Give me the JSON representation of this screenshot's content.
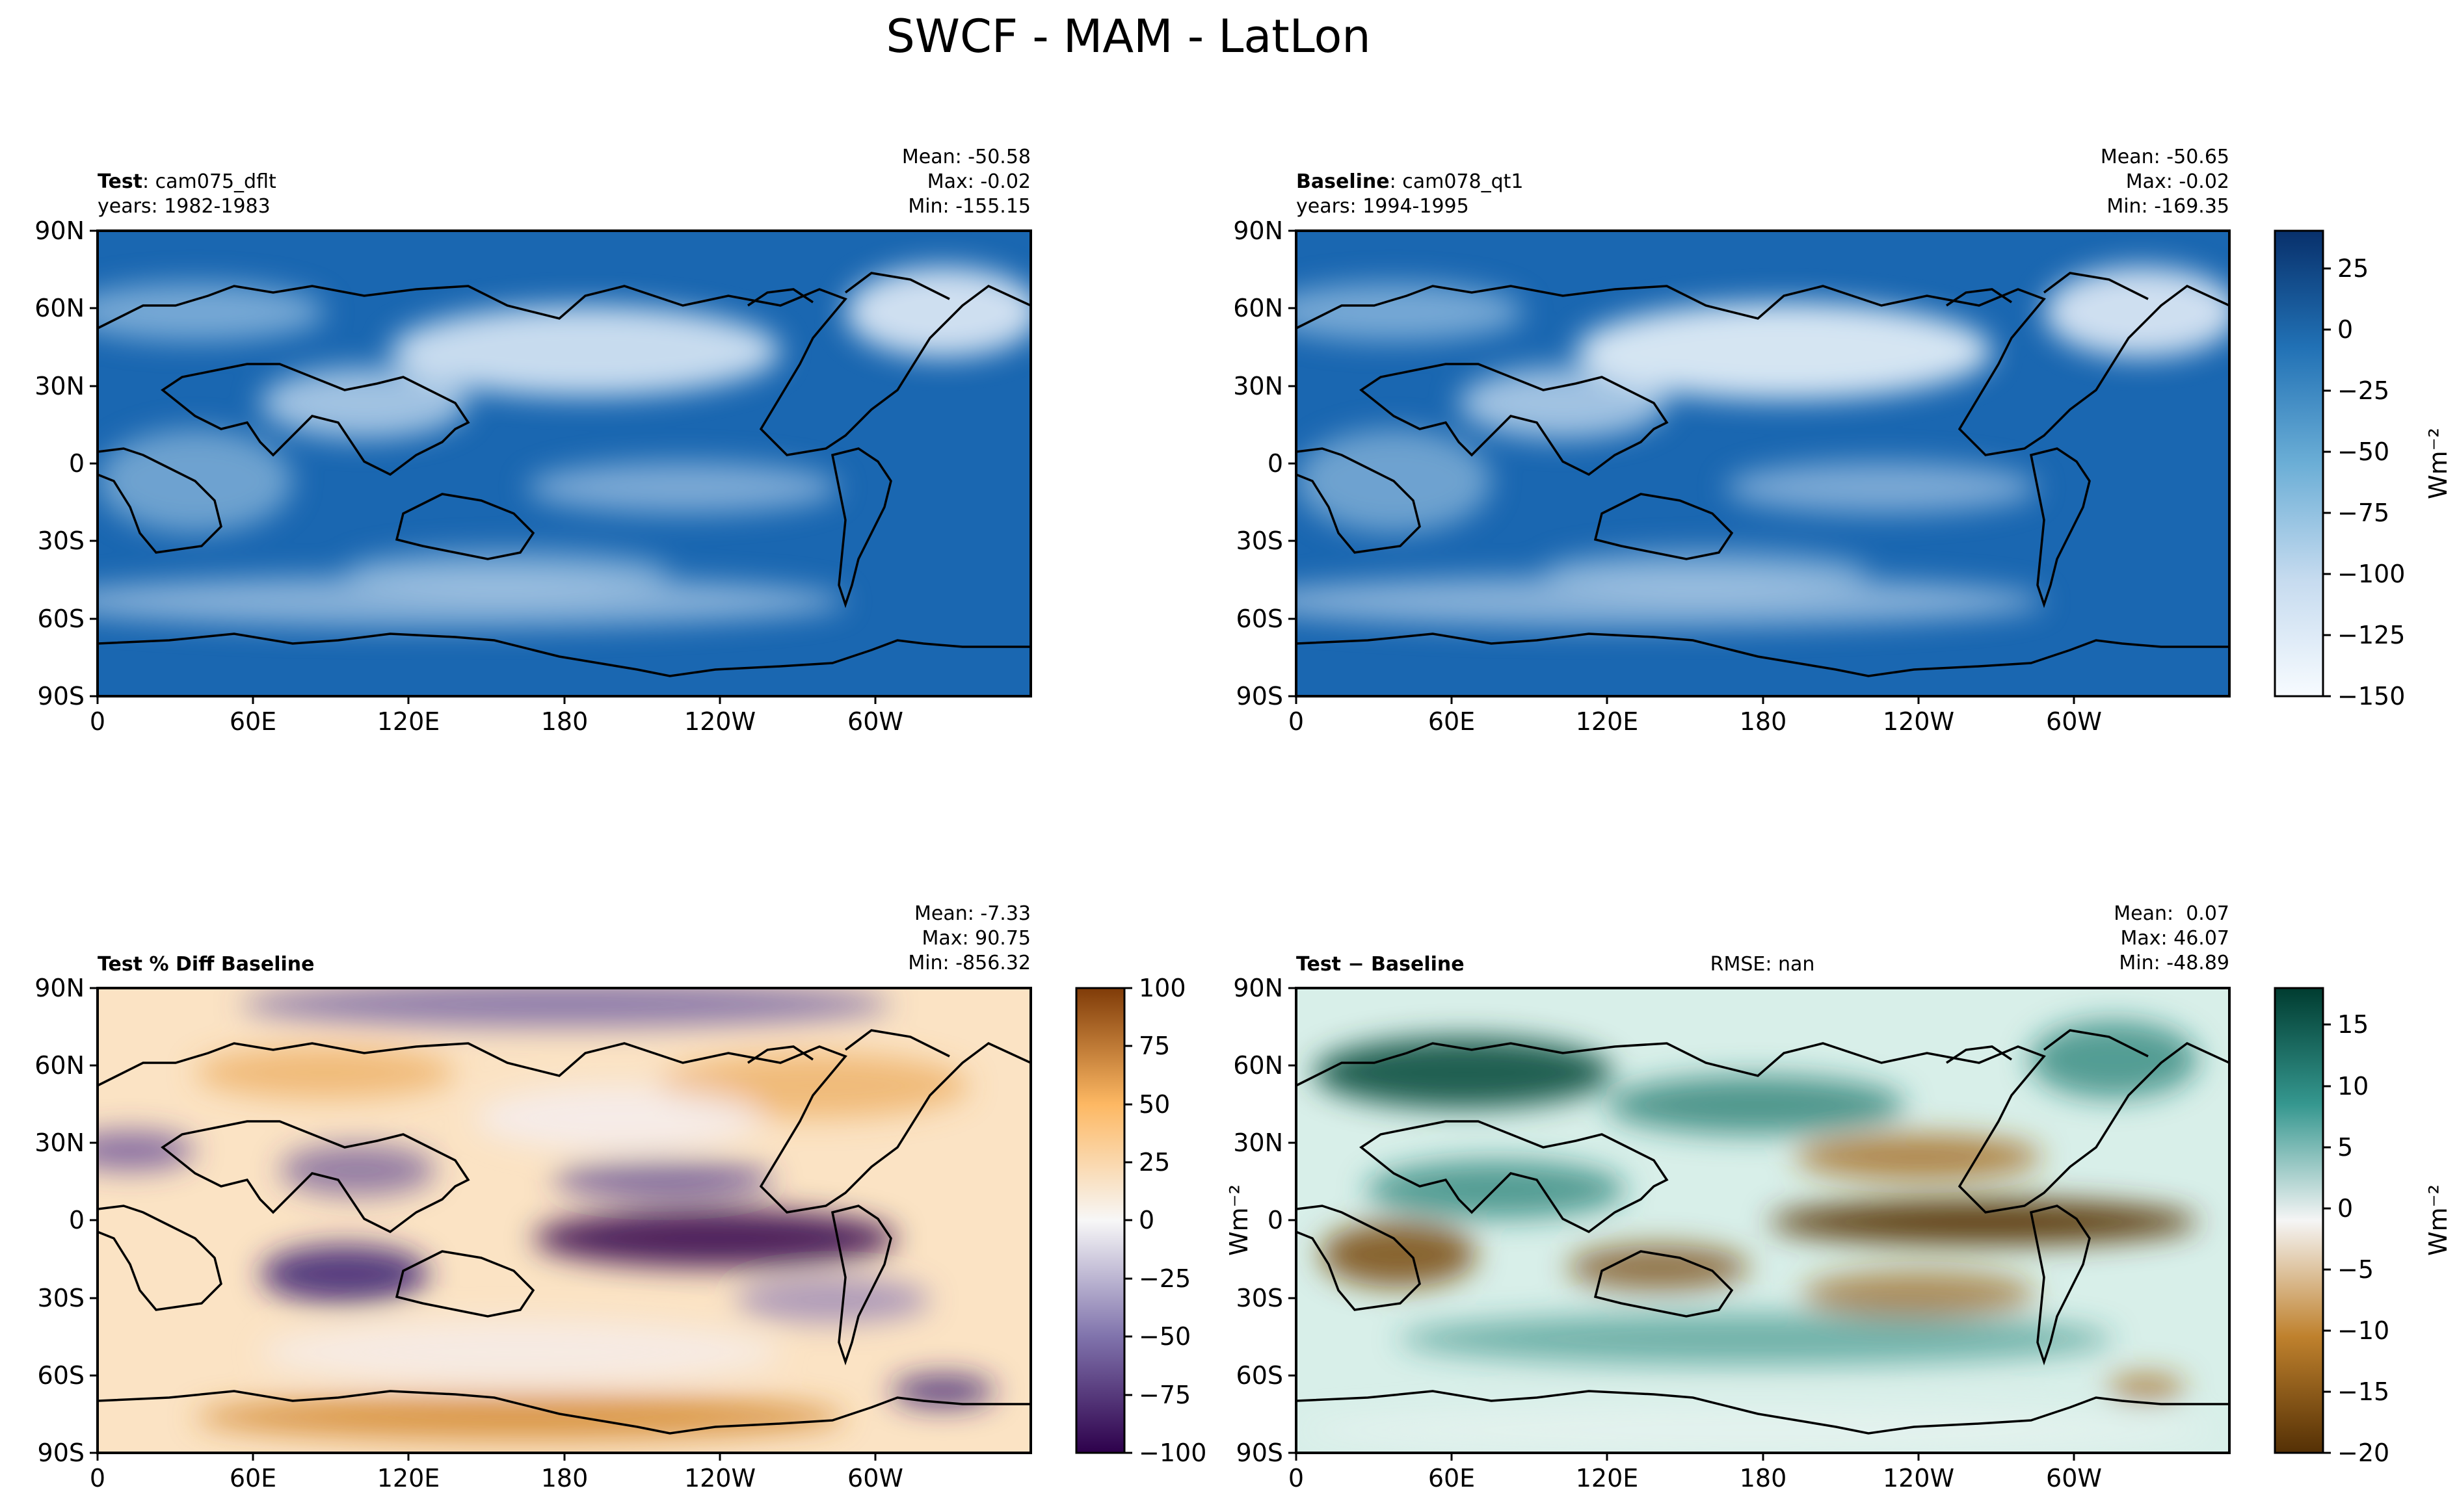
{
  "figure": {
    "title": "SWCF - MAM - LatLon"
  },
  "chart_data": [
    {
      "type": "heatmap",
      "panel": "test",
      "label_bold": "Test",
      "label_rest": ": cam075_dflt",
      "label_line2": "years: 1982-1983",
      "stats": [
        "Mean: -50.58",
        "Max: -0.02",
        "Min: -155.15"
      ],
      "field": "SWCF",
      "xticks": [
        "0",
        "60E",
        "120E",
        "180",
        "120W",
        "60W"
      ],
      "yticks": [
        "90N",
        "60N",
        "30N",
        "0",
        "30S",
        "60S",
        "90S"
      ],
      "xlim": [
        0,
        360
      ],
      "ylim": [
        -90,
        90
      ],
      "colormap": "Blues_r",
      "clim": [
        -150,
        40
      ]
    },
    {
      "type": "heatmap",
      "panel": "baseline",
      "label_bold": "Baseline",
      "label_rest": ": cam078_qt1",
      "label_line2": "years: 1994-1995",
      "stats": [
        "Mean: -50.65",
        "Max: -0.02",
        "Min: -169.35"
      ],
      "field": "SWCF",
      "xticks": [
        "0",
        "60E",
        "120E",
        "180",
        "120W",
        "60W"
      ],
      "yticks": [
        "90N",
        "60N",
        "30N",
        "0",
        "30S",
        "60S",
        "90S"
      ],
      "xlim": [
        0,
        360
      ],
      "ylim": [
        -90,
        90
      ],
      "colormap": "Blues_r",
      "clim": [
        -150,
        40
      ],
      "colorbar": {
        "ticks": [
          "25",
          "0",
          "−25",
          "−50",
          "−75",
          "−100",
          "−125",
          "−150"
        ],
        "tick_values": [
          25,
          0,
          -25,
          -50,
          -75,
          -100,
          -125,
          -150
        ],
        "units": "Wm⁻²"
      }
    },
    {
      "type": "heatmap",
      "panel": "pct_diff",
      "label_bold": "Test % Diff Baseline",
      "stats": [
        "Mean: -7.33",
        "Max: 90.75",
        "Min: -856.32"
      ],
      "field": "SWCF percent difference",
      "xticks": [
        "0",
        "60E",
        "120E",
        "180",
        "120W",
        "60W"
      ],
      "yticks": [
        "90N",
        "60N",
        "30N",
        "0",
        "30S",
        "60S",
        "90S"
      ],
      "xlim": [
        0,
        360
      ],
      "ylim": [
        -90,
        90
      ],
      "colormap": "PuOr_r",
      "clim": [
        -100,
        100
      ],
      "colorbar": {
        "ticks": [
          "100",
          "75",
          "50",
          "25",
          "0",
          "−25",
          "−50",
          "−75",
          "−100"
        ],
        "tick_values": [
          100,
          75,
          50,
          25,
          0,
          -25,
          -50,
          -75,
          -100
        ],
        "units": "Wm⁻²"
      }
    },
    {
      "type": "heatmap",
      "panel": "diff",
      "label_bold": "Test",
      "label_rest": " − Baseline",
      "rmse": "RMSE: nan",
      "stats": [
        "Mean:  0.07",
        "Max: 46.07",
        "Min: -48.89"
      ],
      "field": "SWCF difference",
      "xticks": [
        "0",
        "60E",
        "120E",
        "180",
        "120W",
        "60W"
      ],
      "yticks": [
        "90N",
        "60N",
        "30N",
        "0",
        "30S",
        "60S",
        "90S"
      ],
      "xlim": [
        0,
        360
      ],
      "ylim": [
        -90,
        90
      ],
      "colormap": "BrBG",
      "clim": [
        -20,
        18
      ],
      "colorbar": {
        "ticks": [
          "15",
          "10",
          "5",
          "0",
          "−5",
          "−10",
          "−15",
          "−20"
        ],
        "tick_values": [
          15,
          10,
          5,
          0,
          -5,
          -10,
          -15,
          -20
        ],
        "units": "Wm⁻²"
      }
    }
  ]
}
